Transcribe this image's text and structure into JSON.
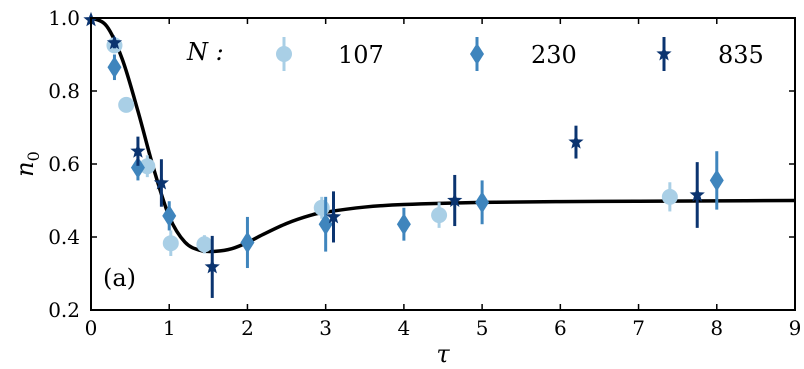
{
  "chart_data": {
    "type": "scatter",
    "xlabel": "τ",
    "ylabel": "n",
    "ylabel_sub": "0",
    "xlim": [
      0,
      9
    ],
    "ylim": [
      0.2,
      1.0
    ],
    "x_ticks": [
      0,
      1,
      2,
      3,
      4,
      5,
      6,
      7,
      8,
      9
    ],
    "x_tick_labels": [
      "0",
      "1",
      "2",
      "3",
      "4",
      "5",
      "6",
      "7",
      "8",
      "9"
    ],
    "y_ticks": [
      0.2,
      0.4,
      0.6,
      0.8,
      1.0
    ],
    "y_tick_labels": [
      "0.2",
      "0.4",
      "0.6",
      "0.8",
      "1.0"
    ],
    "grid": false,
    "legend_placement": "top",
    "legend_title": "N :",
    "panel_label": "(a)",
    "series": [
      {
        "name": "107",
        "marker": "circle",
        "color": "#a9cfe6",
        "points": [
          {
            "x": 0.3,
            "y": 0.925,
            "err": 0.02
          },
          {
            "x": 0.45,
            "y": 0.762,
            "err": 0.02
          },
          {
            "x": 0.72,
            "y": 0.594,
            "err": 0.03
          },
          {
            "x": 1.02,
            "y": 0.383,
            "err": 0.035
          },
          {
            "x": 1.45,
            "y": 0.38,
            "err": 0.025
          },
          {
            "x": 2.95,
            "y": 0.48,
            "err": 0.03
          },
          {
            "x": 4.45,
            "y": 0.46,
            "err": 0.035
          },
          {
            "x": 7.4,
            "y": 0.51,
            "err": 0.04
          }
        ]
      },
      {
        "name": "230",
        "marker": "diamond",
        "color": "#3f85bd",
        "points": [
          {
            "x": 0.3,
            "y": 0.865,
            "err": 0.035
          },
          {
            "x": 0.6,
            "y": 0.59,
            "err": 0.035
          },
          {
            "x": 1.0,
            "y": 0.458,
            "err": 0.04
          },
          {
            "x": 2.0,
            "y": 0.385,
            "err": 0.07
          },
          {
            "x": 3.0,
            "y": 0.435,
            "err": 0.075
          },
          {
            "x": 4.0,
            "y": 0.435,
            "err": 0.045
          },
          {
            "x": 5.0,
            "y": 0.495,
            "err": 0.06
          },
          {
            "x": 8.0,
            "y": 0.555,
            "err": 0.08
          }
        ]
      },
      {
        "name": "835",
        "marker": "star",
        "color": "#0b3470",
        "points": [
          {
            "x": 0.0,
            "y": 0.995,
            "err": 0.01
          },
          {
            "x": 0.3,
            "y": 0.932,
            "err": 0.015
          },
          {
            "x": 0.6,
            "y": 0.635,
            "err": 0.04
          },
          {
            "x": 0.9,
            "y": 0.548,
            "err": 0.065
          },
          {
            "x": 1.55,
            "y": 0.318,
            "err": 0.085
          },
          {
            "x": 3.1,
            "y": 0.455,
            "err": 0.07
          },
          {
            "x": 4.65,
            "y": 0.5,
            "err": 0.07
          },
          {
            "x": 6.2,
            "y": 0.66,
            "err": 0.045
          },
          {
            "x": 7.75,
            "y": 0.515,
            "err": 0.09
          }
        ]
      }
    ],
    "fit_curve": {
      "color": "#000000",
      "points": [
        [
          0.0,
          1.0
        ],
        [
          0.2,
          0.978
        ],
        [
          0.4,
          0.887
        ],
        [
          0.6,
          0.745
        ],
        [
          0.8,
          0.588
        ],
        [
          1.0,
          0.456
        ],
        [
          1.2,
          0.386
        ],
        [
          1.4,
          0.363
        ],
        [
          1.6,
          0.361
        ],
        [
          1.8,
          0.368
        ],
        [
          2.0,
          0.385
        ],
        [
          2.2,
          0.407
        ],
        [
          2.5,
          0.437
        ],
        [
          2.8,
          0.459
        ],
        [
          3.0,
          0.468
        ],
        [
          3.5,
          0.482
        ],
        [
          4.0,
          0.489
        ],
        [
          5.0,
          0.495
        ],
        [
          6.0,
          0.497
        ],
        [
          7.0,
          0.498
        ],
        [
          8.0,
          0.499
        ],
        [
          9.0,
          0.5
        ]
      ]
    }
  }
}
